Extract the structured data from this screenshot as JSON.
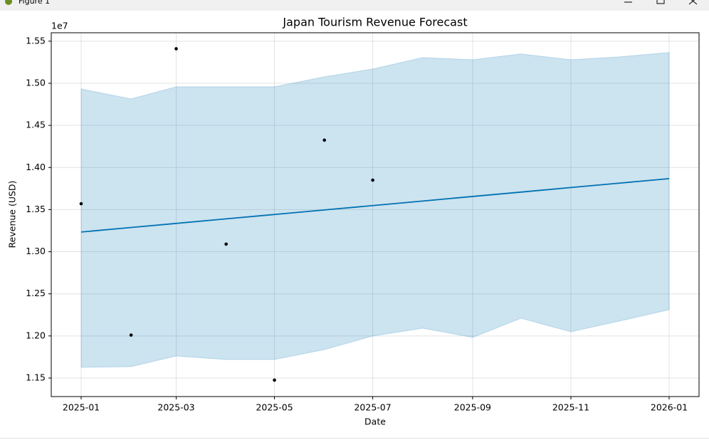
{
  "window": {
    "title": "Figure 1"
  },
  "chart_data": {
    "type": "forecast",
    "title": "Japan Tourism Revenue Forecast",
    "x_label": "Date",
    "y_label": "Revenue (USD)",
    "y_offset_label": "1e7",
    "x": [
      "2025-01",
      "2025-02",
      "2025-03",
      "2025-04",
      "2025-05",
      "2025-06",
      "2025-07",
      "2025-08",
      "2025-09",
      "2025-10",
      "2025-11",
      "2025-12",
      "2026-01"
    ],
    "actual": {
      "color": "#000000",
      "values": [
        13570000,
        12010000,
        15410000,
        13090000,
        11475000,
        14325000,
        13850000,
        null,
        null,
        null,
        null,
        null,
        null
      ]
    },
    "forecast": {
      "color": "#0072b2",
      "values": [
        13234000,
        13288000,
        13336000,
        13390000,
        13442000,
        13496000,
        13548000,
        13602000,
        13656000,
        13708000,
        13762000,
        13814000,
        13868000
      ]
    },
    "interval": {
      "color": "#0072b2",
      "upper": [
        14933000,
        14815000,
        14959000,
        14959000,
        14959000,
        15077000,
        15170000,
        15305000,
        15280000,
        15348000,
        15280000,
        15314000,
        15365000
      ],
      "lower": [
        11627000,
        11635000,
        11762000,
        11720000,
        11720000,
        11838000,
        11999000,
        12092000,
        11982000,
        12210000,
        12049000,
        12176000,
        12311000
      ]
    },
    "xlim": [
      "2025-01",
      "2026-01"
    ],
    "xticks": [
      "2025-01",
      "2025-03",
      "2025-05",
      "2025-07",
      "2025-09",
      "2025-11",
      "2026-01"
    ],
    "ylim": [
      11280000,
      15600000
    ],
    "yticks": [
      {
        "value": 11500000,
        "label": "1.15"
      },
      {
        "value": 12000000,
        "label": "1.20"
      },
      {
        "value": 12500000,
        "label": "1.25"
      },
      {
        "value": 13000000,
        "label": "1.30"
      },
      {
        "value": 13500000,
        "label": "1.35"
      },
      {
        "value": 14000000,
        "label": "1.40"
      },
      {
        "value": 14500000,
        "label": "1.45"
      },
      {
        "value": 15000000,
        "label": "1.50"
      },
      {
        "value": 15500000,
        "label": "1.55"
      }
    ],
    "grid": true
  }
}
